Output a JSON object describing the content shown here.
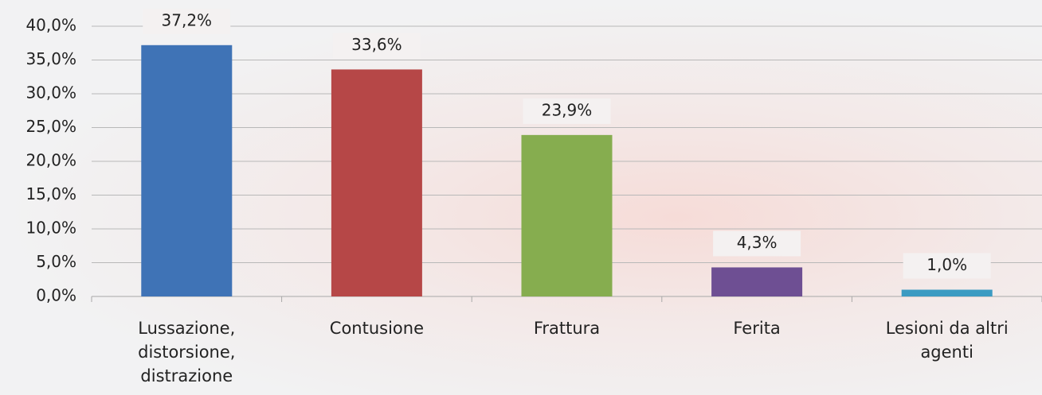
{
  "chart_data": {
    "type": "bar",
    "categories": [
      "Lussazione, distorsione, distrazione",
      "Contusione",
      "Frattura",
      "Ferita",
      "Lesioni da altri agenti"
    ],
    "values": [
      37.2,
      33.6,
      23.9,
      4.3,
      1.0
    ],
    "value_labels": [
      "37,2%",
      "33,6%",
      "23,9%",
      "4,3%",
      "1,0%"
    ],
    "colors": [
      "#3f73b6",
      "#b64747",
      "#86ad4f",
      "#6e4f93",
      "#3b9bc2"
    ],
    "ylim": [
      0,
      40
    ],
    "yticks": [
      {
        "value": 0,
        "label": "0,0%"
      },
      {
        "value": 5,
        "label": "5,0%"
      },
      {
        "value": 10,
        "label": "10,0%"
      },
      {
        "value": 15,
        "label": "15,0%"
      },
      {
        "value": 20,
        "label": "20,0%"
      },
      {
        "value": 25,
        "label": "25,0%"
      },
      {
        "value": 30,
        "label": "30,0%"
      },
      {
        "value": 35,
        "label": "35,0%"
      },
      {
        "value": 40,
        "label": "40,0%"
      }
    ],
    "grid": true
  }
}
